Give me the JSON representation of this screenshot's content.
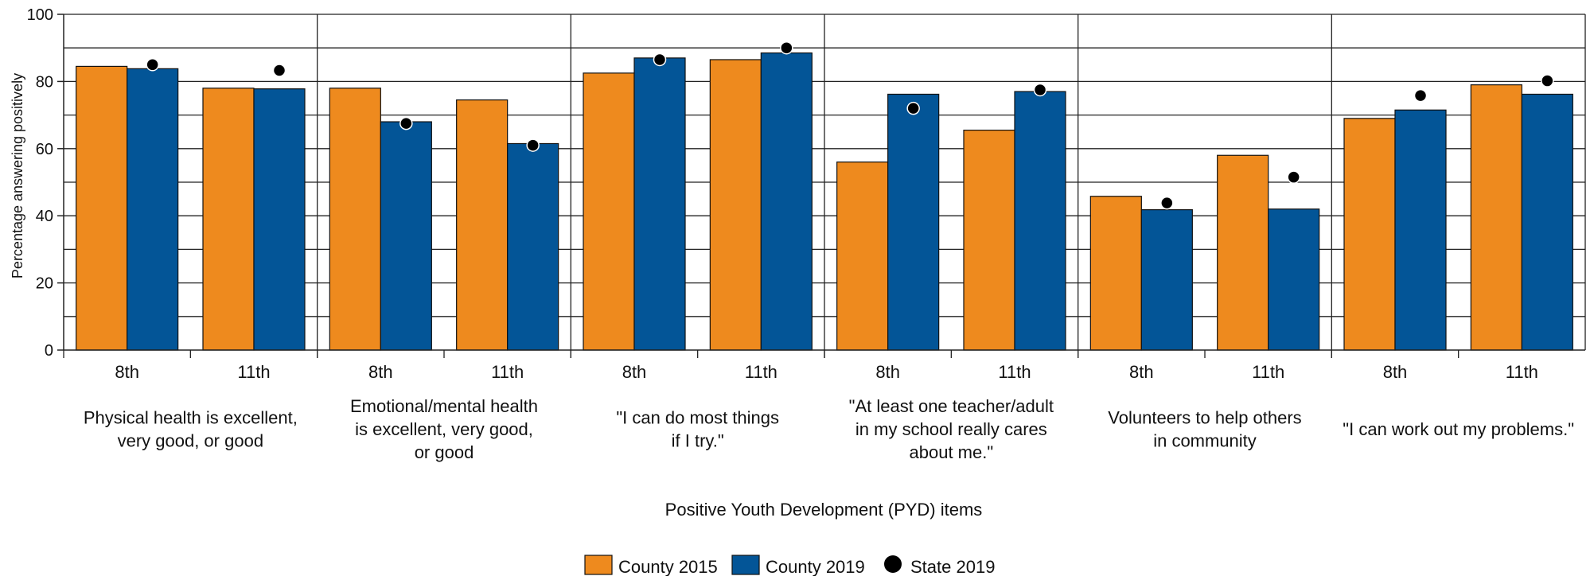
{
  "chart_data": {
    "type": "bar",
    "ylabel": "Percentage answering positively",
    "xlabel": "Positive Youth Development (PYD) items",
    "ylim": [
      0,
      100
    ],
    "yticks": [
      0,
      20,
      40,
      60,
      80,
      100
    ],
    "grid": true,
    "legend_position": "bottom",
    "colors": {
      "County 2015": "#ee8a1e",
      "County 2019": "#035597",
      "State 2019": "#000000"
    },
    "groups": [
      {
        "label_lines": [
          "Physical health is excellent,",
          "very good, or good"
        ]
      },
      {
        "label_lines": [
          "Emotional/mental health",
          "is excellent, very good,",
          "or good"
        ]
      },
      {
        "label_lines": [
          "\"I can do most things",
          "if I try.\""
        ]
      },
      {
        "label_lines": [
          "\"At least one teacher/adult",
          "in my school really cares",
          "about me.\""
        ]
      },
      {
        "label_lines": [
          "Volunteers to help others",
          "in community"
        ]
      },
      {
        "label_lines": [
          "\"I can work out my problems.\""
        ]
      }
    ],
    "subcategories": [
      "8th",
      "11th",
      "8th",
      "11th",
      "8th",
      "11th",
      "8th",
      "11th",
      "8th",
      "11th",
      "8th",
      "11th"
    ],
    "series": [
      {
        "name": "County 2015",
        "kind": "bar",
        "values": [
          84.5,
          78,
          78,
          74.5,
          82.5,
          86.5,
          56,
          65.5,
          45.8,
          58,
          69,
          79
        ]
      },
      {
        "name": "County 2019",
        "kind": "bar",
        "values": [
          83.8,
          77.8,
          68,
          61.5,
          87,
          88.5,
          76.2,
          77,
          41.8,
          42,
          71.5,
          76.2
        ]
      },
      {
        "name": "State 2019",
        "kind": "point",
        "values": [
          85,
          83.3,
          67.5,
          61,
          86.5,
          90,
          72,
          77.5,
          43.8,
          51.5,
          75.8,
          80.2
        ]
      }
    ]
  }
}
